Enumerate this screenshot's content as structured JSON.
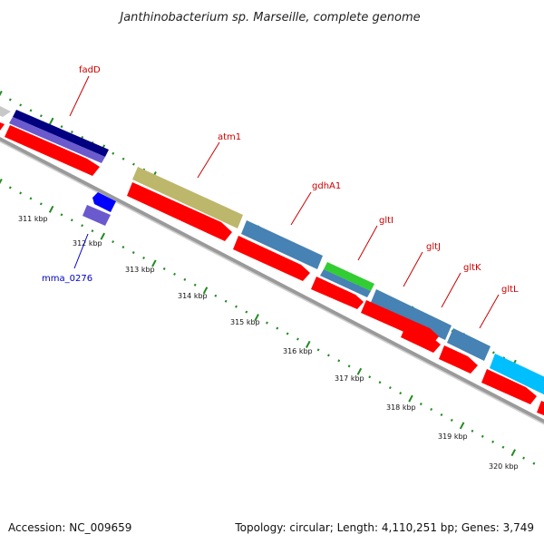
{
  "title": "Janthinobacterium sp. Marseille, complete genome",
  "footer": {
    "accession": "Accession: NC_009659",
    "summary": "Topology: circular; Length: 4,110,251 bp; Genes: 3,749"
  },
  "colors": {
    "label_red": "#cc0000",
    "label_blue": "#0000cc",
    "tick_green": "#228b22",
    "cds_red": "#ff0000",
    "backbone_gray": "#888888"
  },
  "kbp_labels": [
    "311 kbp",
    "312 kbp",
    "313 kbp",
    "314 kbp",
    "315 kbp",
    "316 kbp",
    "317 kbp",
    "318 kbp",
    "319 kbp",
    "320 kbp"
  ],
  "gene_labels": [
    "fadD",
    "atm1",
    "gdhA1",
    "gltI",
    "gltJ",
    "gltK",
    "gltL",
    "mma_0276"
  ]
}
